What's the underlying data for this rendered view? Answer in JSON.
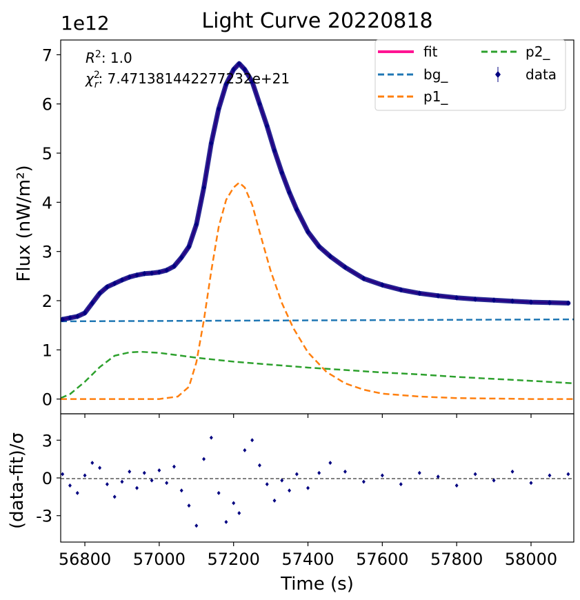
{
  "chart_data": {
    "type": "line",
    "title": "Light Curve 20220818",
    "xlabel": "Time (s)",
    "ylabel_main": "Flux (nW/m²)",
    "ylabel_resid": "(data-fit)/σ",
    "offset_text": "1e12",
    "annotations": {
      "r2_label": "R",
      "r2_value": ": 1.0",
      "chi_label": "χ",
      "chi_sub": "r",
      "chi_value": ": 7.471381442277232e+21"
    },
    "xlim": [
      56735,
      58115
    ],
    "ylim_main": [
      -0.3,
      7.3
    ],
    "ylim_resid": [
      -5.1,
      5.1
    ],
    "x_ticks": [
      56800,
      57000,
      57200,
      57400,
      57600,
      57800,
      58000
    ],
    "x_tick_labels": [
      "56800",
      "57000",
      "57200",
      "57400",
      "57600",
      "57800",
      "58000"
    ],
    "y_ticks_main": [
      0,
      1,
      2,
      3,
      4,
      5,
      6,
      7
    ],
    "y_tick_labels_main": [
      "0",
      "1",
      "2",
      "3",
      "4",
      "5",
      "6",
      "7"
    ],
    "y_ticks_resid": [
      -3,
      0,
      3
    ],
    "y_tick_labels_resid": [
      "-3",
      "0",
      "3"
    ],
    "legend": {
      "placement": "top-right",
      "entries": [
        {
          "key": "fit",
          "label": "fit",
          "color": "#ff1493",
          "style": "solid"
        },
        {
          "key": "p2",
          "label": "p2_",
          "color": "#2ca02c",
          "style": "dashed"
        },
        {
          "key": "bg",
          "label": "bg_",
          "color": "#1f77b4",
          "style": "dashed"
        },
        {
          "key": "data",
          "label": "data",
          "color": "#000080",
          "style": "marker"
        },
        {
          "key": "p1",
          "label": "p1_",
          "color": "#ff7f0e",
          "style": "dashed"
        }
      ]
    },
    "series": [
      {
        "name": "data",
        "color": "#000080",
        "x": [
          56740,
          56760,
          56780,
          56800,
          56820,
          56840,
          56860,
          56880,
          56900,
          56920,
          56940,
          56960,
          56980,
          57000,
          57020,
          57040,
          57060,
          57080,
          57100,
          57120,
          57140,
          57160,
          57180,
          57200,
          57215,
          57230,
          57250,
          57270,
          57290,
          57310,
          57330,
          57350,
          57370,
          57400,
          57430,
          57460,
          57500,
          57550,
          57600,
          57650,
          57700,
          57750,
          57800,
          57850,
          57900,
          57950,
          58000,
          58050,
          58100
        ],
        "y": [
          1.62,
          1.65,
          1.68,
          1.75,
          1.95,
          2.15,
          2.28,
          2.35,
          2.42,
          2.48,
          2.52,
          2.55,
          2.56,
          2.58,
          2.62,
          2.7,
          2.88,
          3.1,
          3.55,
          4.3,
          5.2,
          5.9,
          6.4,
          6.7,
          6.82,
          6.7,
          6.45,
          6.0,
          5.55,
          5.05,
          4.6,
          4.2,
          3.85,
          3.4,
          3.1,
          2.9,
          2.68,
          2.45,
          2.32,
          2.22,
          2.15,
          2.1,
          2.06,
          2.03,
          2.01,
          1.99,
          1.97,
          1.96,
          1.95
        ]
      },
      {
        "name": "fit",
        "color": "#ff1493",
        "x": [
          56740,
          56760,
          56780,
          56800,
          56820,
          56840,
          56860,
          56880,
          56900,
          56920,
          56940,
          56960,
          56980,
          57000,
          57020,
          57040,
          57060,
          57080,
          57100,
          57120,
          57140,
          57160,
          57180,
          57200,
          57215,
          57230,
          57250,
          57270,
          57290,
          57310,
          57330,
          57350,
          57370,
          57400,
          57430,
          57460,
          57500,
          57550,
          57600,
          57650,
          57700,
          57750,
          57800,
          57850,
          57900,
          57950,
          58000,
          58050,
          58100
        ],
        "y": [
          1.62,
          1.65,
          1.68,
          1.75,
          1.95,
          2.15,
          2.28,
          2.35,
          2.42,
          2.48,
          2.52,
          2.55,
          2.56,
          2.58,
          2.62,
          2.7,
          2.88,
          3.1,
          3.55,
          4.3,
          5.2,
          5.9,
          6.4,
          6.7,
          6.82,
          6.7,
          6.45,
          6.0,
          5.55,
          5.05,
          4.6,
          4.2,
          3.85,
          3.4,
          3.1,
          2.9,
          2.68,
          2.45,
          2.32,
          2.22,
          2.15,
          2.1,
          2.06,
          2.03,
          2.01,
          1.99,
          1.97,
          1.96,
          1.95
        ]
      },
      {
        "name": "bg_",
        "color": "#1f77b4",
        "x": [
          56735,
          58115
        ],
        "y": [
          1.58,
          1.62
        ]
      },
      {
        "name": "p1_",
        "color": "#ff7f0e",
        "x": [
          56735,
          56900,
          57000,
          57050,
          57080,
          57100,
          57120,
          57140,
          57160,
          57180,
          57200,
          57215,
          57230,
          57250,
          57270,
          57300,
          57330,
          57360,
          57400,
          57450,
          57500,
          57550,
          57600,
          57700,
          57800,
          57900,
          58000,
          58115
        ],
        "y": [
          0,
          0,
          0,
          0.05,
          0.25,
          0.75,
          1.6,
          2.6,
          3.5,
          4.05,
          4.3,
          4.4,
          4.3,
          3.95,
          3.4,
          2.6,
          1.95,
          1.45,
          0.95,
          0.55,
          0.32,
          0.19,
          0.11,
          0.05,
          0.02,
          0.01,
          0.0,
          0.0
        ]
      },
      {
        "name": "p2_",
        "color": "#2ca02c",
        "x": [
          56735,
          56760,
          56800,
          56840,
          56880,
          56920,
          56950,
          57000,
          57050,
          57100,
          57200,
          57300,
          57400,
          57500,
          57600,
          57700,
          57800,
          57900,
          58000,
          58115
        ],
        "y": [
          0.02,
          0.1,
          0.35,
          0.65,
          0.88,
          0.95,
          0.96,
          0.94,
          0.89,
          0.84,
          0.76,
          0.7,
          0.64,
          0.59,
          0.54,
          0.5,
          0.45,
          0.41,
          0.37,
          0.32
        ]
      },
      {
        "name": "residuals",
        "color": "#000080",
        "x": [
          56740,
          56760,
          56780,
          56800,
          56820,
          56840,
          56860,
          56880,
          56900,
          56920,
          56940,
          56960,
          56980,
          57000,
          57020,
          57040,
          57060,
          57080,
          57100,
          57120,
          57140,
          57160,
          57180,
          57200,
          57215,
          57230,
          57250,
          57270,
          57290,
          57310,
          57330,
          57350,
          57370,
          57400,
          57430,
          57460,
          57500,
          57550,
          57600,
          57650,
          57700,
          57750,
          57800,
          57850,
          57900,
          57950,
          58000,
          58050,
          58100
        ],
        "y": [
          0.3,
          -0.6,
          -1.2,
          0.2,
          1.2,
          0.8,
          -0.5,
          -1.5,
          -0.3,
          0.5,
          -0.8,
          0.4,
          -0.2,
          0.6,
          -0.4,
          0.9,
          -1.0,
          -2.2,
          -3.8,
          1.5,
          3.2,
          -1.2,
          -3.5,
          -2.0,
          -2.8,
          2.2,
          3.0,
          1.0,
          -0.5,
          -1.8,
          -0.2,
          -1.0,
          0.3,
          -0.8,
          0.4,
          1.2,
          0.5,
          -0.3,
          0.2,
          -0.5,
          0.4,
          0.1,
          -0.6,
          0.3,
          -0.2,
          0.5,
          -0.4,
          0.2,
          0.3
        ]
      }
    ]
  }
}
